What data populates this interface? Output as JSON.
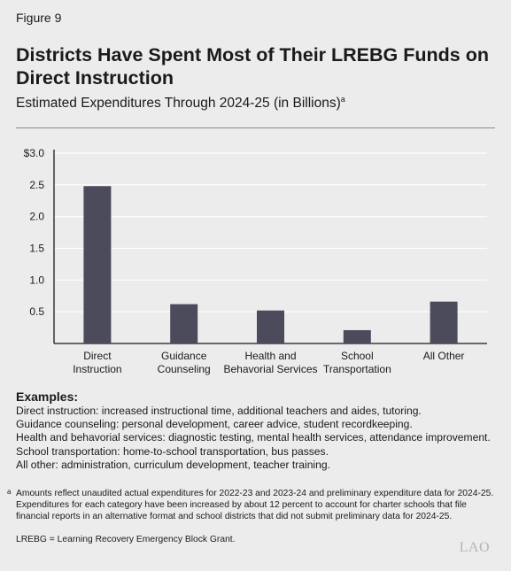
{
  "figure_label": "Figure 9",
  "title": "Districts Have Spent Most of Their LREBG Funds on Direct Instruction",
  "subtitle": "Estimated Expenditures Through 2024-25 (in Billions)",
  "subtitle_footnote_mark": "a",
  "chart_data": {
    "type": "bar",
    "categories": [
      [
        "Direct",
        "Instruction"
      ],
      [
        "Guidance",
        "Counseling"
      ],
      [
        "Health and",
        "Behavorial Services"
      ],
      [
        "School",
        "Transportation"
      ],
      [
        "All Other"
      ]
    ],
    "values": [
      2.48,
      0.62,
      0.52,
      0.21,
      0.66
    ],
    "ylim": [
      0,
      3.0
    ],
    "yticks": [
      0.5,
      1.0,
      1.5,
      2.0,
      2.5,
      3.0
    ],
    "ytick_labels": [
      "0.5",
      "1.0",
      "1.5",
      "2.0",
      "2.5",
      "$3.0"
    ],
    "bar_color": "#4b4b5c",
    "grid": true,
    "grid_color": "#ffffff"
  },
  "examples": {
    "heading": "Examples:",
    "lines": [
      "Direct instruction: increased instructional time, additional teachers and aides, tutoring.",
      "Guidance counseling: personal development, career advice, student recordkeeping.",
      "Health and behavorial services: diagnostic testing, mental health services, attendance improvement.",
      "School transportation: home-to-school transportation, bus passes.",
      "All other: administration, curriculum development, teacher training."
    ]
  },
  "footnote": {
    "mark": "a",
    "text": "Amounts reflect unaudited actual expenditures for 2022-23 and 2023-24 and preliminary expenditure data for 2024-25. Expenditures for each category have been increased by about 12 percent to account for charter schools that file financial reports in an alternative format and school districts that did not submit preliminary data for 2024-25."
  },
  "acronym_note": "LREBG = Learning Recovery Emergency Block Grant.",
  "logo_text": "LAO"
}
